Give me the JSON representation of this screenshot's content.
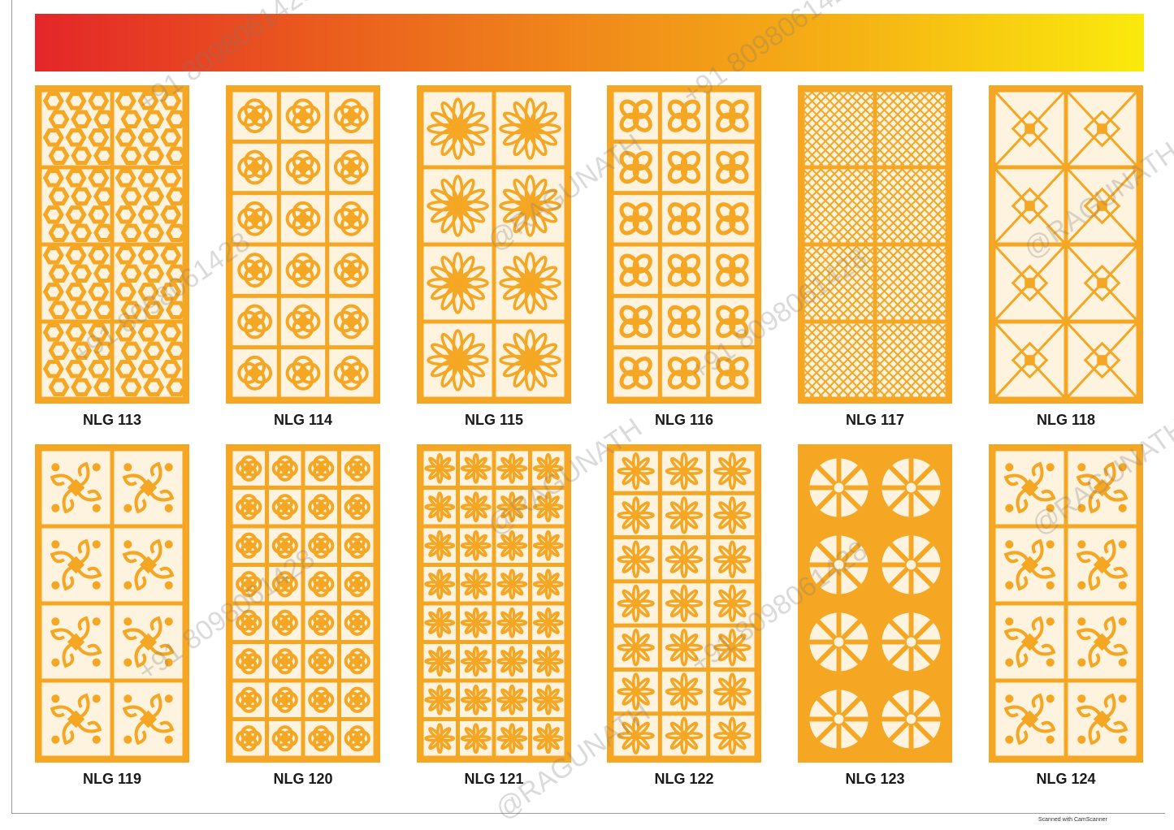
{
  "palette": {
    "panel": "#f5a623",
    "hole": "#fdf3df",
    "banner_start": "#e42629",
    "banner_end": "#faea0c"
  },
  "panels": [
    {
      "code": "NLG 113",
      "pattern": "hex"
    },
    {
      "code": "NLG 114",
      "pattern": "quatrefoil"
    },
    {
      "code": "NLG 115",
      "pattern": "star"
    },
    {
      "code": "NLG 116",
      "pattern": "butterfly"
    },
    {
      "code": "NLG 117",
      "pattern": "lattice"
    },
    {
      "code": "NLG 118",
      "pattern": "geo"
    },
    {
      "code": "NLG 119",
      "pattern": "damask"
    },
    {
      "code": "NLG 120",
      "pattern": "tile"
    },
    {
      "code": "NLG 121",
      "pattern": "flower"
    },
    {
      "code": "NLG 122",
      "pattern": "rosette"
    },
    {
      "code": "NLG 123",
      "pattern": "wheel"
    },
    {
      "code": "NLG 124",
      "pattern": "scroll"
    }
  ],
  "watermark": {
    "brand": "@RAGUNATH",
    "phone": "+91 8098061428"
  },
  "credit": "Scanned with CamScanner"
}
